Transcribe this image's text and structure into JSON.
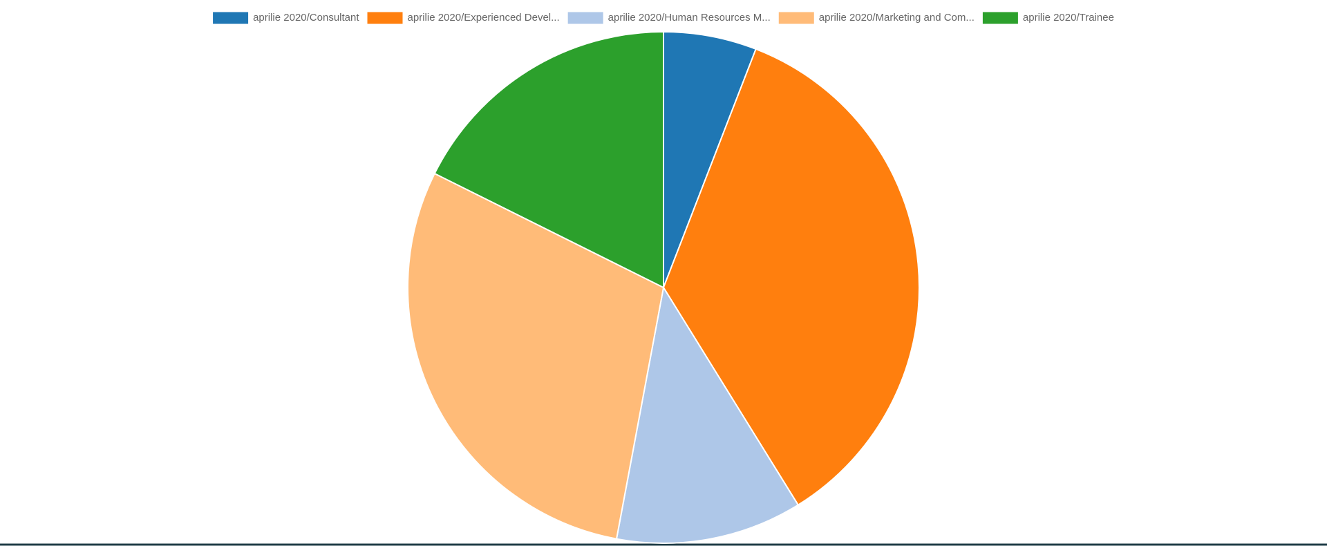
{
  "chart_data": {
    "type": "pie",
    "categories": [
      "aprilie 2020/Consultant",
      "aprilie 2020/Experienced Devel...",
      "aprilie 2020/Human Resources M...",
      "aprilie 2020/Marketing and Com...",
      "aprilie 2020/Trainee"
    ],
    "values": [
      1,
      6,
      2,
      5,
      3
    ],
    "colors": [
      "#1f77b4",
      "#ff7f0e",
      "#aec7e8",
      "#ffbb78",
      "#2ca02c"
    ],
    "legend": "top"
  }
}
